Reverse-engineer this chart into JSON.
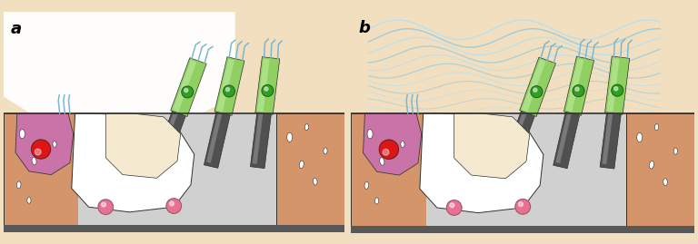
{
  "bg_color": "#f2dfc0",
  "skin_color": "#d4956a",
  "skin_light": "#e8b888",
  "gray_floor_dark": "#909090",
  "gray_floor_mid": "#b8b8b8",
  "gray_floor_light": "#d0d0d0",
  "white": "#ffffff",
  "cream": "#f5ead0",
  "purple_body": "#c870b0",
  "purple_light": "#e0a0d0",
  "red_dot": "#dd1515",
  "pink_dot": "#e87090",
  "green_cell": "#90d060",
  "green_light": "#b8e898",
  "green_dot": "#30a020",
  "gray_tube_dark": "#505050",
  "gray_tube_light": "#787878",
  "blue_hair": "#7ab8d0",
  "blue_wave": "#90cce0",
  "blue_wave_light": "#b8e0f0",
  "outline": "#303030",
  "outline_light": "#606060",
  "label_a": "a",
  "label_b": "b"
}
